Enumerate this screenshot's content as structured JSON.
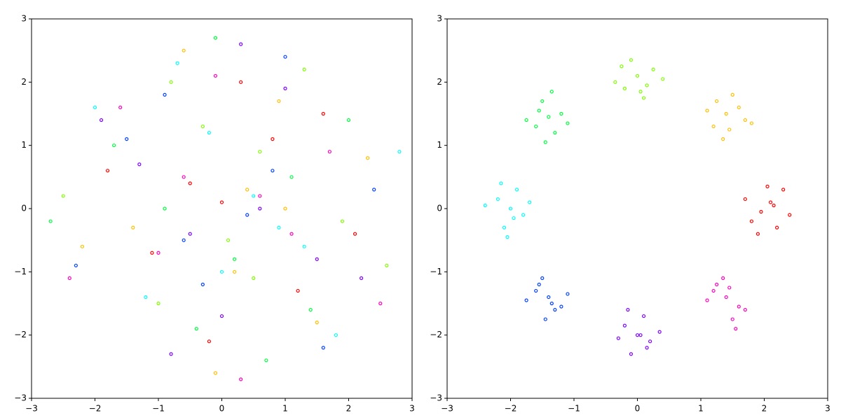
{
  "chart_data": [
    {
      "type": "scatter",
      "xlim": [
        -3,
        3
      ],
      "ylim": [
        -3,
        3
      ],
      "xticks": [
        {
          "value": -3,
          "label": "−3"
        },
        {
          "value": -2,
          "label": "−2"
        },
        {
          "value": -1,
          "label": "−1"
        },
        0,
        1,
        2,
        3
      ],
      "yticks": [
        {
          "value": -3,
          "label": "−3"
        },
        {
          "value": -2,
          "label": "−2"
        },
        {
          "value": -1,
          "label": "−1"
        },
        0,
        1,
        2,
        3
      ],
      "series": [
        {
          "color": "#ff0000",
          "x": [
            -0.5,
            1.2,
            0.3,
            -1.8,
            2.1,
            -0.2,
            0.8,
            -1.1,
            0.0,
            1.6
          ],
          "values": [
            0.4,
            -1.3,
            2.0,
            0.6,
            -0.4,
            -2.1,
            1.1,
            -0.7,
            0.1,
            1.5
          ]
        },
        {
          "color": "#ffbf00",
          "x": [
            0.9,
            -1.4,
            0.2,
            2.3,
            -0.6,
            1.5,
            -2.2,
            0.4,
            -0.1,
            1.0
          ],
          "values": [
            1.7,
            -0.3,
            -1.0,
            0.8,
            2.5,
            -1.8,
            -0.6,
            0.3,
            -2.6,
            0.0
          ]
        },
        {
          "color": "#80ff00",
          "x": [
            -1.0,
            0.6,
            1.9,
            -0.3,
            -2.5,
            0.1,
            1.3,
            -0.8,
            0.5,
            2.6
          ],
          "values": [
            -1.5,
            0.9,
            -0.2,
            1.3,
            0.2,
            -0.5,
            2.2,
            2.0,
            -1.1,
            -0.9
          ]
        },
        {
          "color": "#00ff40",
          "x": [
            0.2,
            -1.7,
            1.1,
            -0.4,
            2.0,
            -0.9,
            0.7,
            -2.7,
            1.4,
            -0.1
          ],
          "values": [
            -0.8,
            1.0,
            0.5,
            -1.9,
            1.4,
            0.0,
            -2.4,
            -0.2,
            -1.6,
            2.7
          ]
        },
        {
          "color": "#00ffff",
          "x": [
            -0.2,
            1.3,
            -1.2,
            0.5,
            2.8,
            -0.7,
            0.0,
            1.8,
            -2.0,
            0.9
          ],
          "values": [
            1.2,
            -0.6,
            -1.4,
            0.2,
            0.9,
            2.3,
            -1.0,
            -2.0,
            1.6,
            -0.3
          ]
        },
        {
          "color": "#0040ff",
          "x": [
            0.4,
            -0.9,
            1.6,
            -2.3,
            0.8,
            -0.3,
            2.4,
            -1.5,
            1.0,
            -0.6
          ],
          "values": [
            -0.1,
            1.8,
            -2.2,
            -0.9,
            0.6,
            -1.2,
            0.3,
            1.1,
            2.4,
            -0.5
          ]
        },
        {
          "color": "#8000ff",
          "x": [
            -1.3,
            0.0,
            1.0,
            -0.5,
            2.2,
            -1.9,
            0.6,
            1.5,
            -0.8,
            0.3
          ],
          "values": [
            0.7,
            -1.7,
            1.9,
            -0.4,
            -1.1,
            1.4,
            0.0,
            -0.8,
            -2.3,
            2.6
          ]
        },
        {
          "color": "#ff00bf",
          "x": [
            1.1,
            -0.6,
            0.3,
            -1.6,
            2.5,
            -0.1,
            1.7,
            -2.4,
            0.6,
            -1.0
          ],
          "values": [
            -0.4,
            0.5,
            -2.7,
            1.6,
            -1.5,
            2.1,
            0.9,
            -1.1,
            0.2,
            -0.7
          ]
        }
      ]
    },
    {
      "type": "scatter",
      "xlim": [
        -3,
        3
      ],
      "ylim": [
        -3,
        3
      ],
      "xticks": [
        {
          "value": -3,
          "label": "−3"
        },
        {
          "value": -2,
          "label": "−2"
        },
        {
          "value": -1,
          "label": "−1"
        },
        0,
        1,
        2,
        3
      ],
      "yticks": [
        {
          "value": -3,
          "label": "−3"
        },
        {
          "value": -2,
          "label": "−2"
        },
        {
          "value": -1,
          "label": "−1"
        },
        0,
        1,
        2,
        3
      ],
      "series": [
        {
          "color": "#ff0000",
          "x": [
            2.1,
            1.8,
            2.3,
            1.95,
            2.2,
            1.7,
            2.05,
            2.4,
            1.9,
            2.15
          ],
          "values": [
            0.1,
            -0.2,
            0.3,
            -0.05,
            -0.3,
            0.15,
            0.35,
            -0.1,
            -0.4,
            0.05
          ]
        },
        {
          "color": "#ffbf00",
          "x": [
            1.4,
            1.2,
            1.6,
            1.35,
            1.7,
            1.1,
            1.5,
            1.45,
            1.25,
            1.8
          ],
          "values": [
            1.5,
            1.3,
            1.6,
            1.1,
            1.4,
            1.55,
            1.8,
            1.25,
            1.7,
            1.35
          ]
        },
        {
          "color": "#80ff00",
          "x": [
            0.0,
            -0.2,
            0.25,
            0.1,
            -0.35,
            0.4,
            -0.1,
            0.15,
            -0.25,
            0.05
          ],
          "values": [
            2.1,
            1.9,
            2.2,
            1.75,
            2.0,
            2.05,
            2.35,
            1.95,
            2.25,
            1.85
          ]
        },
        {
          "color": "#00ff40",
          "x": [
            -1.4,
            -1.6,
            -1.2,
            -1.5,
            -1.3,
            -1.75,
            -1.45,
            -1.1,
            -1.55,
            -1.35
          ],
          "values": [
            1.45,
            1.3,
            1.5,
            1.7,
            1.2,
            1.4,
            1.05,
            1.35,
            1.55,
            1.85
          ]
        },
        {
          "color": "#00ffff",
          "x": [
            -2.0,
            -2.2,
            -1.8,
            -2.1,
            -1.9,
            -2.4,
            -2.05,
            -1.7,
            -2.15,
            -1.95
          ],
          "values": [
            0.0,
            0.15,
            -0.1,
            -0.3,
            0.3,
            0.05,
            -0.45,
            0.1,
            0.4,
            -0.15
          ]
        },
        {
          "color": "#0040ff",
          "x": [
            -1.4,
            -1.6,
            -1.2,
            -1.5,
            -1.3,
            -1.75,
            -1.45,
            -1.1,
            -1.55,
            -1.35
          ],
          "values": [
            -1.4,
            -1.3,
            -1.55,
            -1.1,
            -1.6,
            -1.45,
            -1.75,
            -1.35,
            -1.2,
            -1.5
          ]
        },
        {
          "color": "#8000ff",
          "x": [
            0.0,
            -0.2,
            0.2,
            0.1,
            -0.3,
            0.35,
            -0.1,
            0.15,
            -0.15,
            0.05
          ],
          "values": [
            -2.0,
            -1.85,
            -2.1,
            -1.7,
            -2.05,
            -1.95,
            -2.3,
            -2.2,
            -1.6,
            -2.0
          ]
        },
        {
          "color": "#ff00bf",
          "x": [
            1.4,
            1.2,
            1.6,
            1.35,
            1.7,
            1.1,
            1.5,
            1.45,
            1.25,
            1.55
          ],
          "values": [
            -1.4,
            -1.3,
            -1.55,
            -1.1,
            -1.6,
            -1.45,
            -1.75,
            -1.25,
            -1.2,
            -1.9
          ]
        }
      ]
    }
  ]
}
